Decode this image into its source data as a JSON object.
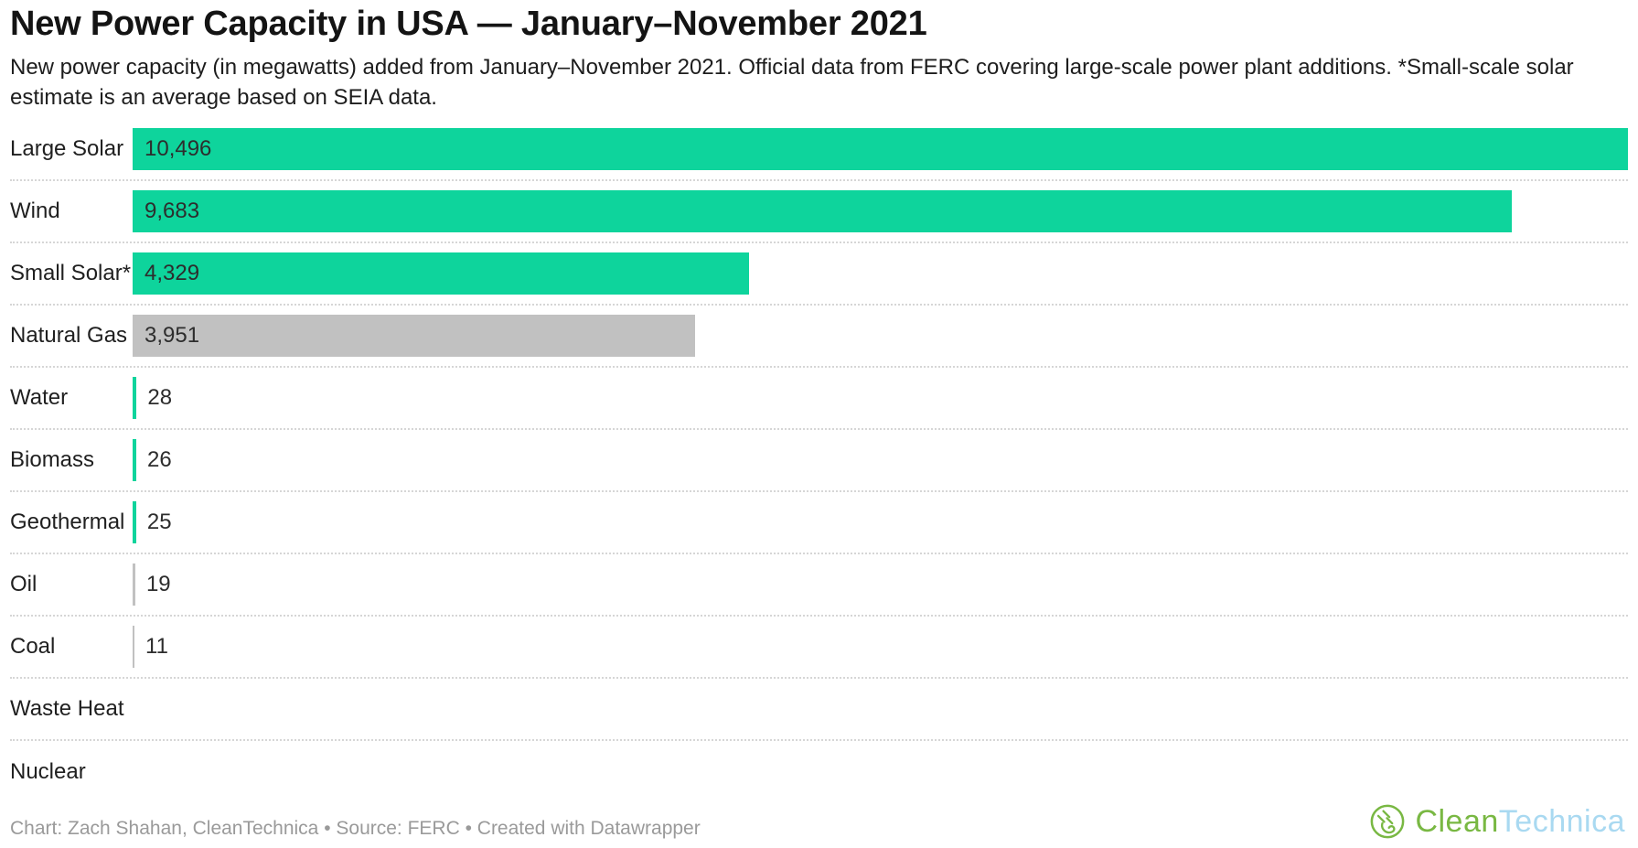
{
  "chart_data": {
    "type": "bar",
    "orientation": "horizontal",
    "title": "New Power Capacity in USA — January–November 2021",
    "subtitle": "New power capacity (in megawatts) added from January–November 2021. Official data from FERC covering large-scale power plant additions. *Small-scale solar estimate is an average based on SEIA data.",
    "unit": "MW",
    "xlim": [
      0,
      10496
    ],
    "grid": false,
    "legend": "none",
    "categories": [
      "Large Solar",
      "Wind",
      "Small Solar*",
      "Natural Gas",
      "Water",
      "Biomass",
      "Geothermal",
      "Oil",
      "Coal",
      "Waste Heat",
      "Nuclear"
    ],
    "values": [
      10496,
      9683,
      4329,
      3951,
      28,
      26,
      25,
      19,
      11,
      0,
      0
    ],
    "value_labels": [
      "10,496",
      "9,683",
      "4,329",
      "3,951",
      "28",
      "26",
      "25",
      "19",
      "11",
      "",
      ""
    ],
    "bar_color_keys": [
      "green",
      "green",
      "green",
      "gray",
      "green",
      "green",
      "green",
      "gray",
      "gray",
      "none",
      "none"
    ],
    "label_positions": [
      "inside",
      "inside",
      "inside",
      "inside",
      "outside",
      "outside",
      "outside",
      "outside",
      "outside",
      "none",
      "none"
    ],
    "colors": {
      "green": "#0ed49c",
      "gray": "#c1c1c1"
    }
  },
  "footer": {
    "byline": "Chart: Zach Shahan, CleanTechnica • Source: FERC • Created with Datawrapper",
    "logo": {
      "part1": "Clean",
      "part2": "Technica",
      "icon": "cleantechnica-plug-leaf-icon",
      "green": "#79b843",
      "blue": "#a9d9f1"
    }
  }
}
